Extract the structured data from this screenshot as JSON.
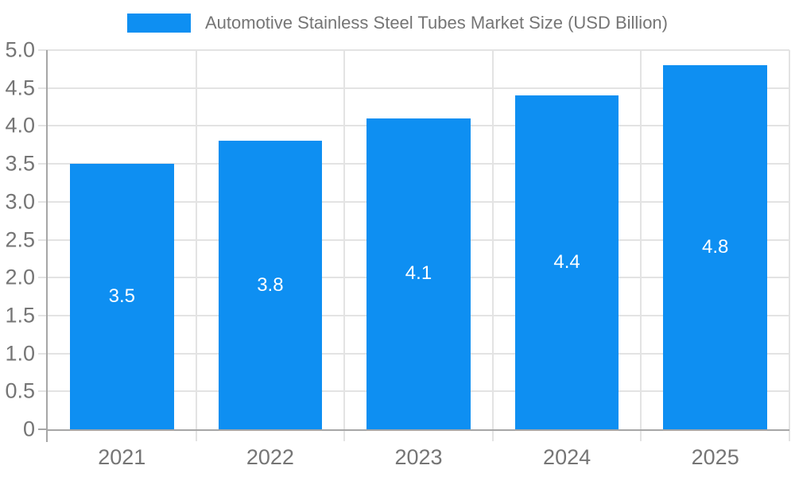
{
  "chart_data": {
    "type": "bar",
    "title": "",
    "legend": {
      "position": "top",
      "label": "Automotive Stainless Steel Tubes Market Size (USD Billion)"
    },
    "categories": [
      "2021",
      "2022",
      "2023",
      "2024",
      "2025"
    ],
    "series": [
      {
        "name": "Automotive Stainless Steel Tubes Market Size (USD Billion)",
        "values": [
          3.5,
          3.8,
          4.1,
          4.4,
          4.8
        ]
      }
    ],
    "bar_value_labels": [
      "3.5",
      "3.8",
      "4.1",
      "4.4",
      "4.8"
    ],
    "xlabel": "",
    "ylabel": "",
    "ylim": [
      0,
      5
    ],
    "yticks": {
      "values": [
        0,
        0.5,
        1,
        1.5,
        2,
        2.5,
        3,
        3.5,
        4,
        4.5,
        5
      ],
      "labels": [
        "0",
        "0.5",
        "1.0",
        "1.5",
        "2.0",
        "2.5",
        "3.0",
        "3.5",
        "4.0",
        "4.5",
        "5.0"
      ]
    },
    "grid": true,
    "bar_width_fraction": 0.7,
    "colors": {
      "bar": "#0e8ff2",
      "grid": "#e3e3e3",
      "axis": "#a6a6a6",
      "tick_label": "#757575",
      "legend_text": "#757575",
      "bar_label": "#ffffff"
    }
  }
}
